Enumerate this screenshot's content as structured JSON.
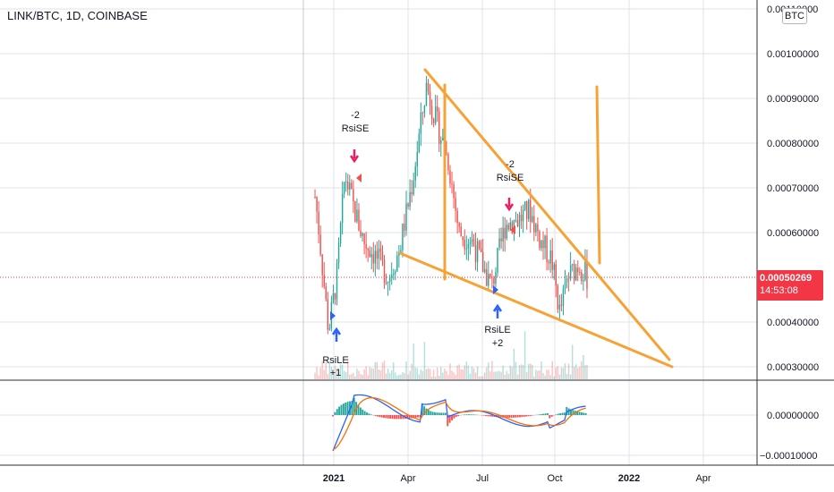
{
  "header": {
    "title": "LINK/BTC, 1D, COINBASE"
  },
  "badge": {
    "currency": "BTC"
  },
  "last_price": {
    "value": "0.00050269",
    "countdown": "14:53:08",
    "color": "#f23645"
  },
  "colors": {
    "up": "#26a69a",
    "down": "#ef5350",
    "trend": "#f7a234",
    "macd": "#2962ff",
    "signal": "#ff6d00",
    "sell_arrow": "#e91e63",
    "buy_arrow": "#2962ff"
  },
  "chart_data": [
    {
      "type": "candlestick",
      "title": "LINK/BTC, 1D, COINBASE",
      "y_tick_labels": [
        "0.00110000",
        "0.00100000",
        "0.00090000",
        "0.00080000",
        "0.00070000",
        "0.00060000",
        "0.00040000",
        "0.00030000"
      ],
      "x_tick_labels": [
        "2021",
        "Apr",
        "Jul",
        "Oct",
        "2022",
        "Apr"
      ],
      "ylim": [
        0.00028,
        0.00111
      ],
      "grid": true,
      "price_path": [
        {
          "x": 0.0,
          "y": 0.00068
        },
        {
          "x": 0.01,
          "y": 0.00063
        },
        {
          "x": 0.05,
          "y": 0.00038
        },
        {
          "x": 0.08,
          "y": 0.0005
        },
        {
          "x": 0.11,
          "y": 0.00073
        },
        {
          "x": 0.14,
          "y": 0.00066
        },
        {
          "x": 0.18,
          "y": 0.00058
        },
        {
          "x": 0.22,
          "y": 0.00055
        },
        {
          "x": 0.27,
          "y": 0.0005
        },
        {
          "x": 0.31,
          "y": 0.00056
        },
        {
          "x": 0.36,
          "y": 0.00072
        },
        {
          "x": 0.41,
          "y": 0.00093
        },
        {
          "x": 0.44,
          "y": 0.00086
        },
        {
          "x": 0.49,
          "y": 0.00076
        },
        {
          "x": 0.53,
          "y": 0.0006
        },
        {
          "x": 0.58,
          "y": 0.00058
        },
        {
          "x": 0.62,
          "y": 0.00052
        },
        {
          "x": 0.65,
          "y": 0.00048
        },
        {
          "x": 0.7,
          "y": 0.00062
        },
        {
          "x": 0.75,
          "y": 0.00063
        },
        {
          "x": 0.79,
          "y": 0.00065
        },
        {
          "x": 0.83,
          "y": 0.00058
        },
        {
          "x": 0.87,
          "y": 0.00054
        },
        {
          "x": 0.9,
          "y": 0.00042
        },
        {
          "x": 0.93,
          "y": 0.0005
        },
        {
          "x": 0.97,
          "y": 0.00053
        },
        {
          "x": 1.0,
          "y": 0.0005
        }
      ],
      "trend_lines": [
        {
          "from": [
            0.00096,
            "upper-start"
          ],
          "to": [
            0.00053,
            "upper-end"
          ]
        },
        {
          "from": [
            0.00056,
            "lower-start"
          ],
          "to": [
            0.00031,
            "lower-end"
          ]
        }
      ],
      "annotations": [
        {
          "text": [
            "-2",
            "RsiSE"
          ],
          "signal": "sell"
        },
        {
          "text": [
            "-2",
            "RsiSE"
          ],
          "signal": "sell"
        },
        {
          "text": [
            "RsiLE",
            "+1"
          ],
          "signal": "buy"
        },
        {
          "text": [
            "RsiLE",
            "+2"
          ],
          "signal": "buy"
        }
      ]
    },
    {
      "type": "line",
      "y_tick_labels": [
        "0.00000000",
        "−0.00010000"
      ],
      "series": [
        {
          "name": "",
          "values": []
        }
      ]
    }
  ]
}
